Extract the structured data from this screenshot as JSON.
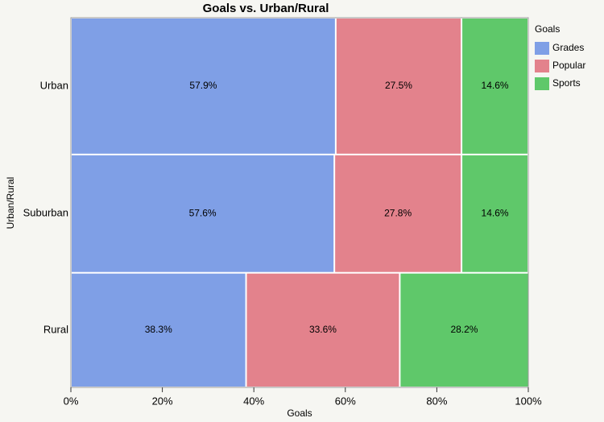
{
  "chart_data": {
    "type": "mosaic",
    "title": "Goals vs. Urban/Rural",
    "x_label": "Goals",
    "y_label": "Urban/Rural",
    "legend_title": "Goals",
    "legend_position": "right",
    "categories": [
      "Urban",
      "Suburban",
      "Rural"
    ],
    "row_share": [
      37,
      32,
      31
    ],
    "series": [
      {
        "name": "Grades",
        "color": "#7f9fe6",
        "values": [
          57.9,
          57.6,
          38.3
        ],
        "value_labels": [
          "57.9%",
          "57.6%",
          "38.3%"
        ]
      },
      {
        "name": "Popular",
        "color": "#e3828c",
        "values": [
          27.5,
          27.8,
          33.6
        ],
        "value_labels": [
          "27.5%",
          "27.8%",
          "33.6%"
        ]
      },
      {
        "name": "Sports",
        "color": "#5fc86a",
        "values": [
          14.6,
          14.6,
          28.2
        ],
        "value_labels": [
          "14.6%",
          "14.6%",
          "28.2%"
        ]
      }
    ],
    "xlim": [
      0,
      100
    ],
    "xticks": [
      {
        "value": 0,
        "label": "0%"
      },
      {
        "value": 20,
        "label": "20%"
      },
      {
        "value": 40,
        "label": "40%"
      },
      {
        "value": 60,
        "label": "60%"
      },
      {
        "value": 80,
        "label": "80%"
      },
      {
        "value": 100,
        "label": "100%"
      }
    ]
  }
}
